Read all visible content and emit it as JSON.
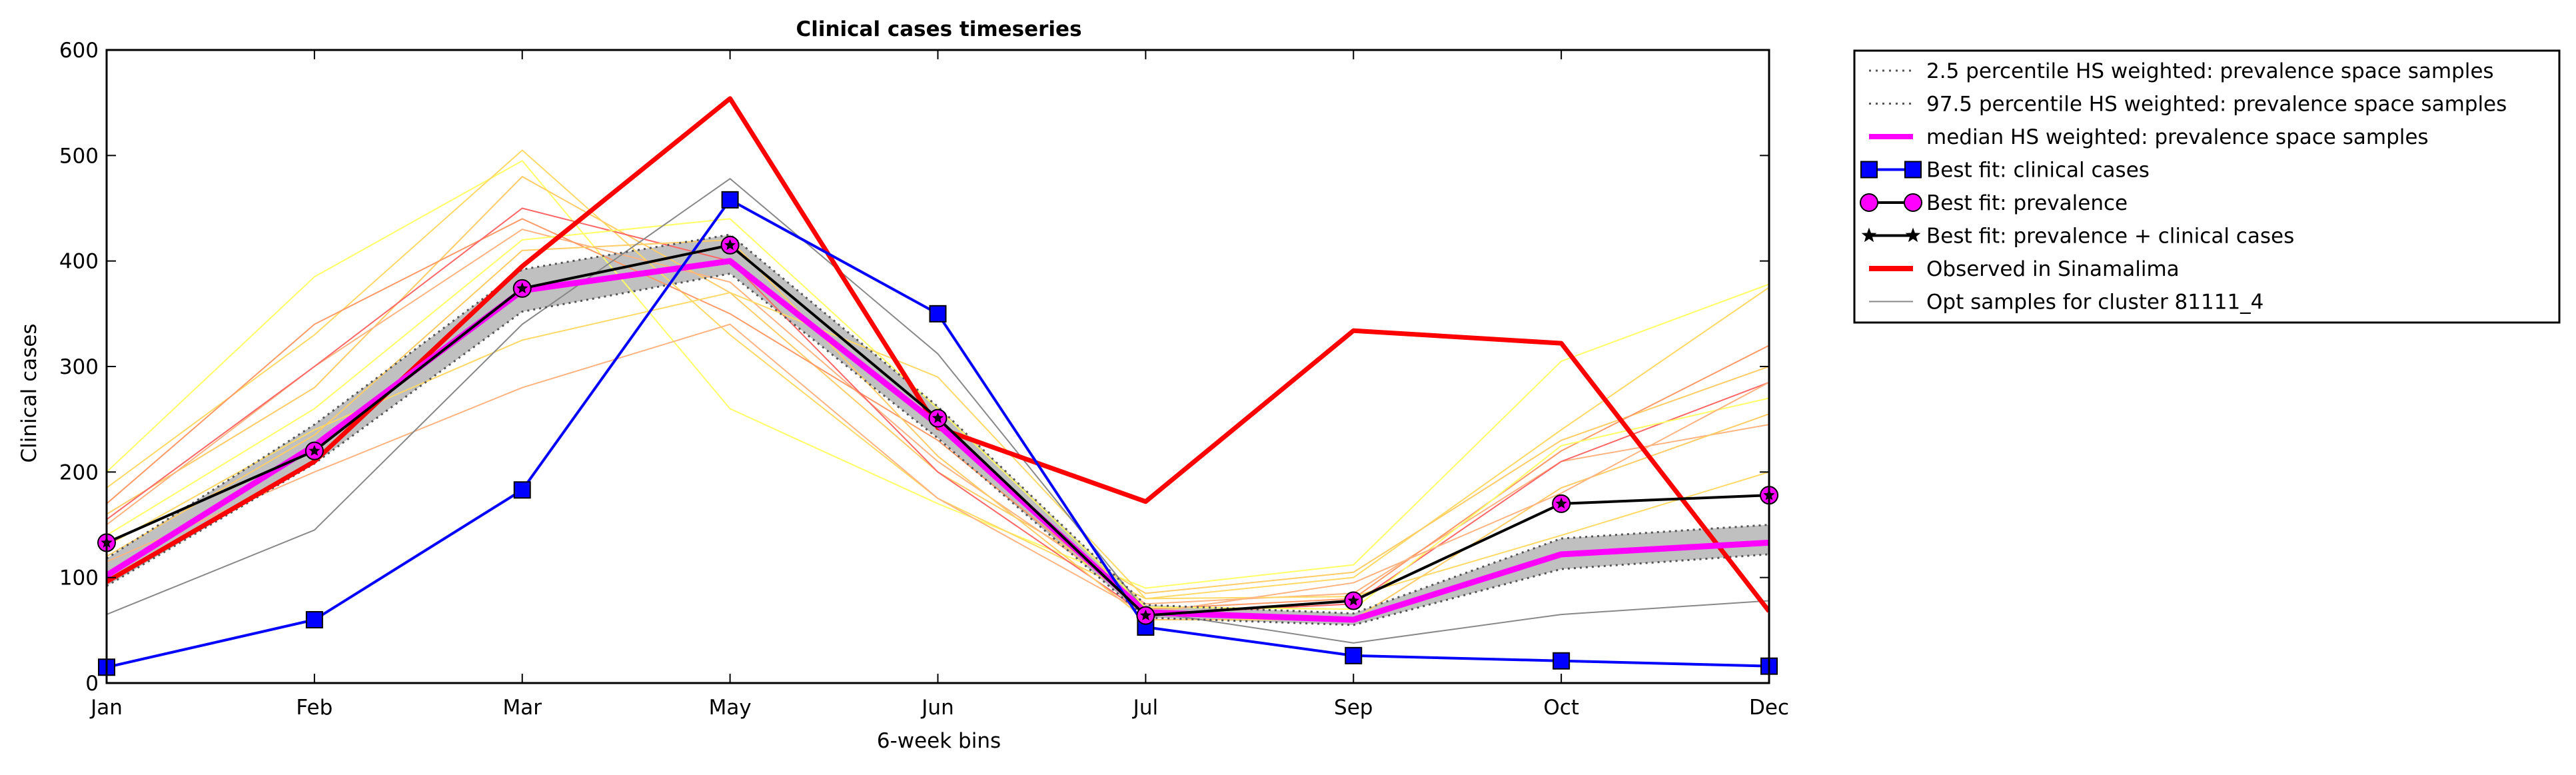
{
  "chart_data": {
    "type": "line",
    "title": "Clinical cases timeseries",
    "xlabel": "6-week bins",
    "ylabel": "Clinical cases",
    "categories": [
      "Jan",
      "Feb",
      "Mar",
      "May",
      "Jun",
      "Jul",
      "Sep",
      "Oct",
      "Dec"
    ],
    "ylim": [
      0,
      600
    ],
    "yticks": [
      "0",
      "100",
      "200",
      "300",
      "400",
      "500",
      "600"
    ],
    "grid": false,
    "legend_position": "outside-right-top",
    "band": {
      "lower_series": "2.5 percentile HS weighted: prevalence space samples",
      "upper_series": "97.5 percentile HS weighted: prevalence space samples",
      "color": "#c0c0c0"
    },
    "series": [
      {
        "name": "2.5 percentile HS weighted: prevalence space samples",
        "style": "dotted",
        "color": "#555555",
        "values": [
          92,
          208,
          352,
          388,
          232,
          62,
          55,
          108,
          122
        ]
      },
      {
        "name": "97.5 percentile HS weighted: prevalence space samples",
        "style": "dotted",
        "color": "#555555",
        "values": [
          118,
          245,
          392,
          425,
          262,
          74,
          66,
          137,
          150
        ]
      },
      {
        "name": "median HS weighted: prevalence space samples",
        "style": "solid",
        "color": "#ff00ff",
        "values": [
          102,
          225,
          372,
          400,
          245,
          67,
          60,
          122,
          133
        ]
      },
      {
        "name": "Best fit: clinical cases",
        "style": "solid",
        "color": "#0000ff",
        "marker": "square",
        "values": [
          15,
          60,
          183,
          458,
          350,
          53,
          26,
          21,
          16
        ]
      },
      {
        "name": "Best fit: prevalence",
        "style": "none",
        "color": "#ff00ff",
        "marker": "circle",
        "values": [
          133,
          220,
          374,
          415,
          251,
          64,
          78,
          170,
          178
        ]
      },
      {
        "name": "Best fit: prevalence + clinical cases",
        "style": "solid",
        "color": "#000000",
        "marker": "star",
        "values": [
          133,
          220,
          374,
          415,
          251,
          64,
          78,
          170,
          178
        ]
      },
      {
        "name": "Observed in Sinamalima",
        "style": "solid",
        "color": "#ff0000",
        "values": [
          96,
          210,
          395,
          554,
          242,
          172,
          334,
          322,
          68
        ]
      },
      {
        "name": "Opt samples for cluster 81111_4",
        "style": "thin",
        "color": "#888888",
        "values": [
          65,
          145,
          340,
          478,
          312,
          68,
          38,
          65,
          78
        ]
      }
    ],
    "sample_lines": {
      "colors": [
        "#ffff66",
        "#ffd966",
        "#ffcc66",
        "#ffb380",
        "#ff9966",
        "#ff6666"
      ],
      "values": [
        [
          200,
          385,
          495,
          260,
          170,
          90,
          112,
          305,
          378
        ],
        [
          185,
          330,
          505,
          330,
          175,
          80,
          100,
          240,
          375
        ],
        [
          160,
          280,
          480,
          370,
          200,
          85,
          105,
          230,
          300
        ],
        [
          150,
          300,
          430,
          380,
          210,
          75,
          85,
          210,
          245
        ],
        [
          170,
          340,
          440,
          350,
          230,
          70,
          80,
          220,
          320
        ],
        [
          155,
          300,
          450,
          400,
          200,
          65,
          75,
          210,
          285
        ],
        [
          140,
          260,
          420,
          440,
          260,
          72,
          70,
          225,
          270
        ],
        [
          130,
          240,
          325,
          370,
          290,
          80,
          82,
          140,
          200
        ],
        [
          120,
          235,
          410,
          420,
          215,
          60,
          60,
          185,
          255
        ],
        [
          115,
          200,
          280,
          340,
          175,
          66,
          95,
          180,
          285
        ]
      ]
    }
  }
}
